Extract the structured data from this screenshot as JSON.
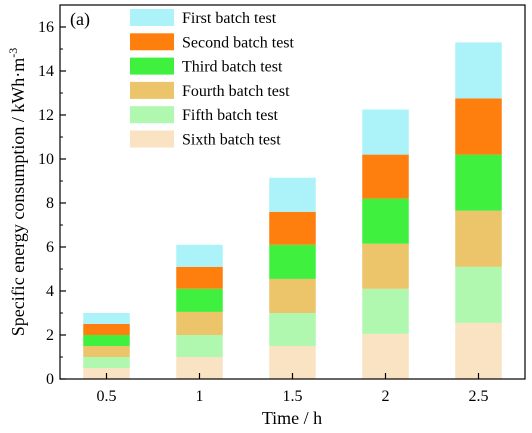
{
  "chart_data": {
    "type": "bar",
    "stacked": true,
    "panel_label": "(a)",
    "categories": [
      "0.5",
      "1",
      "1.5",
      "2",
      "2.5"
    ],
    "xlabel": "Time / h",
    "ylabel_main": "Specific energy consumption / kWh·m",
    "ylabel_sup": "-3",
    "ylim": [
      0,
      17
    ],
    "yticks": [
      0,
      2,
      4,
      6,
      8,
      10,
      12,
      14,
      16
    ],
    "legend_position": "top-left",
    "series": [
      {
        "name": "Sixth batch test",
        "color": "#f9e3c2",
        "values": [
          0.5,
          1.0,
          1.5,
          2.05,
          2.55
        ]
      },
      {
        "name": "Fifth batch test",
        "color": "#b0f7b0",
        "values": [
          0.5,
          1.0,
          1.5,
          2.05,
          2.55
        ]
      },
      {
        "name": "Fourth batch test",
        "color": "#ecc46a",
        "values": [
          0.5,
          1.05,
          1.55,
          2.05,
          2.55
        ]
      },
      {
        "name": "Third batch test",
        "color": "#3ff03f",
        "values": [
          0.5,
          1.05,
          1.55,
          2.05,
          2.55
        ]
      },
      {
        "name": "Second batch test",
        "color": "#ff7f0e",
        "values": [
          0.5,
          1.0,
          1.5,
          2.0,
          2.55
        ]
      },
      {
        "name": "First batch test",
        "color": "#abf3f8",
        "values": [
          0.5,
          1.0,
          1.55,
          2.05,
          2.55
        ]
      }
    ]
  }
}
